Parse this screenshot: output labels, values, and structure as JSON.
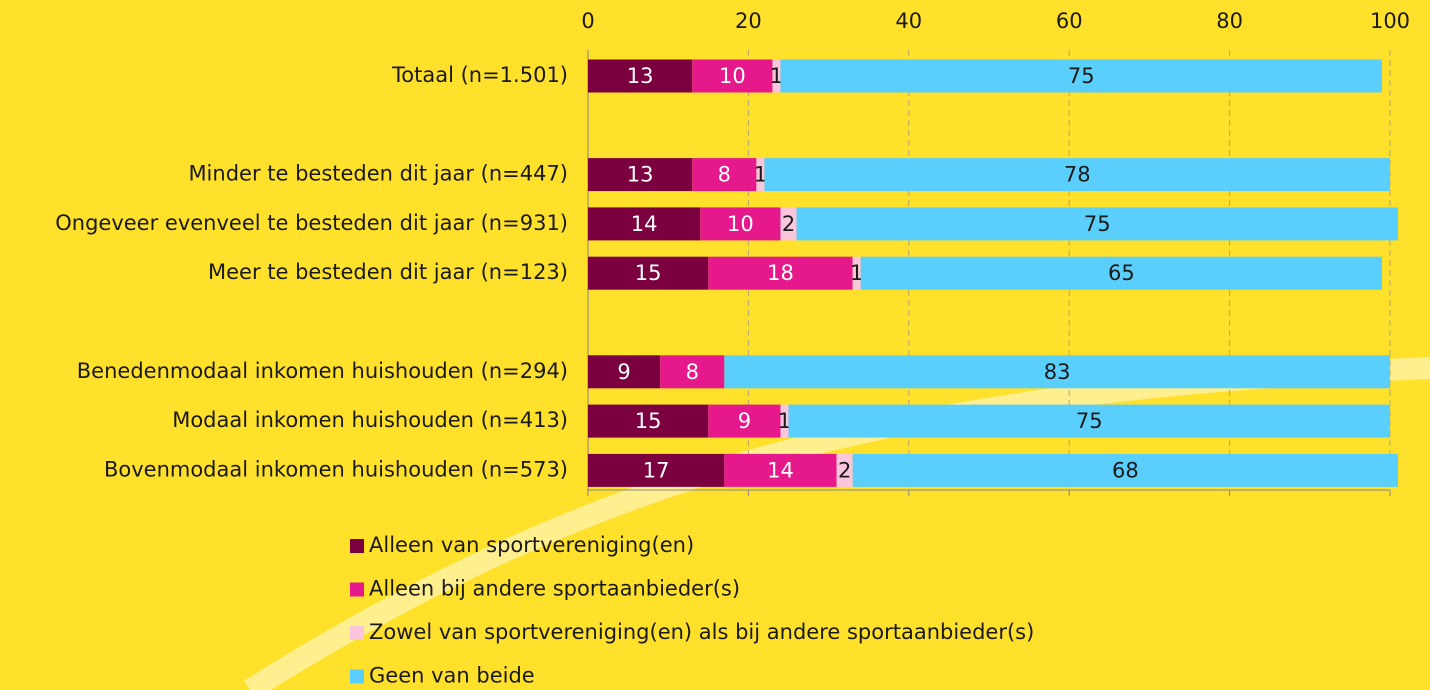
{
  "chart_data": {
    "type": "stacked-barh",
    "categories": [
      "Totaal (n=1.501)",
      null,
      "Minder te besteden dit jaar (n=447)",
      "Ongeveer evenveel te besteden dit jaar (n=931)",
      "Meer te besteden dit jaar (n=123)",
      null,
      "Benedenmodaal inkomen huishouden (n=294)",
      "Modaal inkomen huishouden (n=413)",
      "Bovenmodaal inkomen huishouden (n=573)"
    ],
    "series": [
      {
        "name": "Alleen van sportvereniging(en)",
        "color": "#7a0040",
        "values": [
          13,
          null,
          13,
          14,
          15,
          null,
          9,
          15,
          17
        ]
      },
      {
        "name": "Alleen bij andere sportaanbieder(s)",
        "color": "#e5198c",
        "values": [
          10,
          null,
          8,
          10,
          18,
          null,
          8,
          9,
          14
        ]
      },
      {
        "name": "Zowel van sportvereniging(en) als bij andere sportaanbieder(s)",
        "color": "#f9c6dc",
        "values": [
          1,
          null,
          1,
          2,
          1,
          null,
          null,
          1,
          2
        ]
      },
      {
        "name": "Geen van beide",
        "color": "#5bcffb",
        "values": [
          75,
          null,
          78,
          75,
          65,
          null,
          83,
          75,
          68
        ]
      }
    ],
    "xlim": [
      0,
      100
    ],
    "xticks": [
      0,
      20,
      40,
      60,
      80,
      100
    ],
    "grid": true
  }
}
